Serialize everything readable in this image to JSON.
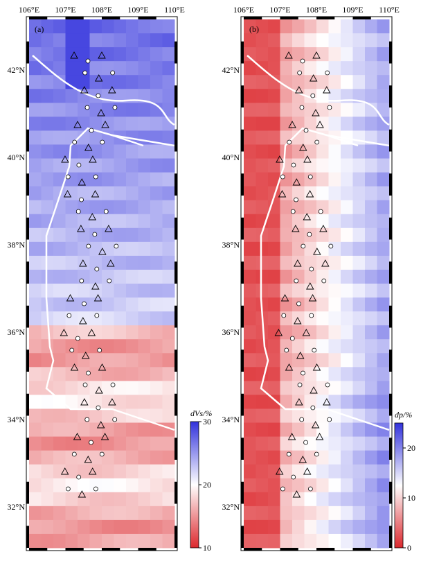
{
  "panels": [
    {
      "label": "(a)",
      "colorbar": {
        "title": "dVs/%",
        "lim": [
          10,
          30
        ],
        "ticks": [
          10,
          20,
          30
        ]
      }
    },
    {
      "label": "(b)",
      "colorbar": {
        "title": "dp/%",
        "lim": [
          0,
          25
        ],
        "ticks": [
          0,
          10,
          20
        ]
      }
    }
  ],
  "lon_labels": [
    "106°E",
    "107°E",
    "108°E",
    "109°E",
    "110°E"
  ],
  "lat_labels": [
    "42°N",
    "40°N",
    "38°N",
    "36°N",
    "34°N",
    "32°N"
  ]
}
